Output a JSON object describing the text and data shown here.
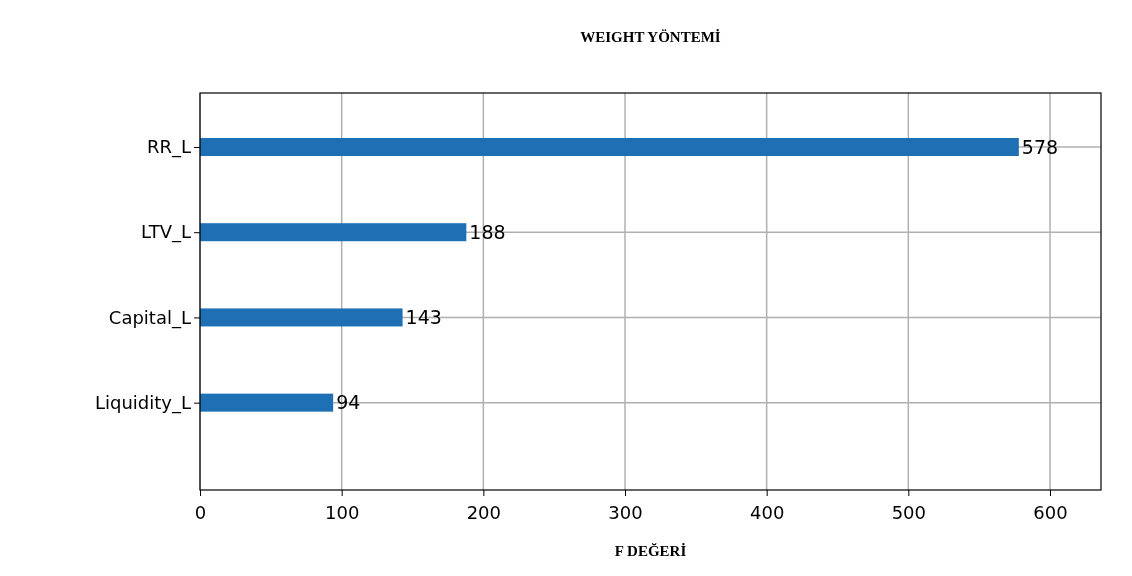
{
  "chart_data": {
    "type": "bar",
    "orientation": "horizontal",
    "title": "WEIGHT YÖNTEMİ",
    "xlabel": "F DEĞERİ",
    "categories": [
      "RR_L",
      "LTV_L",
      "Capital_L",
      "Liquidity_L"
    ],
    "values": [
      578,
      188,
      143,
      94
    ],
    "color": "#1f6fb4",
    "xlim": [
      0,
      636
    ],
    "xticks": [
      0,
      100,
      200,
      300,
      400,
      500,
      600
    ],
    "grid": true,
    "data_labels": true
  }
}
